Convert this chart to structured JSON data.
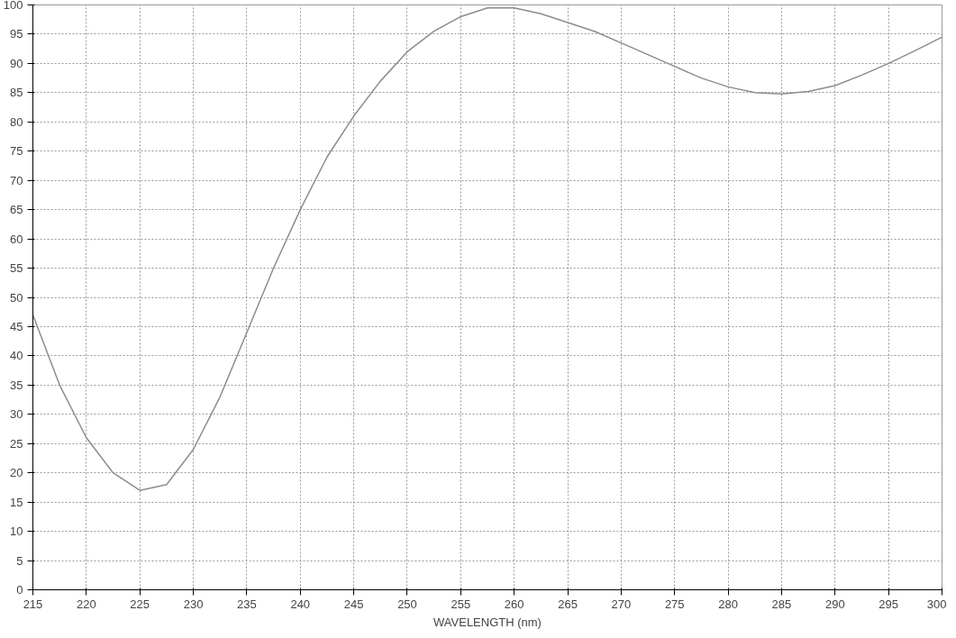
{
  "chart_data": {
    "type": "line",
    "xlabel": "WAVELENGTH (nm)",
    "x": [
      215,
      217.5,
      220,
      222.5,
      225,
      227.5,
      230,
      232.5,
      235,
      237.5,
      240,
      242.5,
      245,
      247.5,
      250,
      252.5,
      255,
      257.5,
      260,
      262.5,
      265,
      267.5,
      270,
      272.5,
      275,
      277.5,
      280,
      282.5,
      285,
      287.5,
      290,
      292.5,
      295,
      297.5,
      300
    ],
    "series": [
      {
        "color": "#8c8c8c",
        "values": [
          47,
          35,
          26,
          20,
          17,
          18,
          24,
          33,
          44,
          55,
          65,
          74,
          81,
          87,
          92,
          95.5,
          98,
          99.5,
          99.5,
          98.5,
          97,
          95.5,
          93.5,
          91.5,
          89.5,
          87.5,
          86,
          85,
          84.8,
          85.2,
          86.2,
          88,
          90,
          92.2,
          94.5
        ]
      }
    ],
    "xlim": [
      215,
      300
    ],
    "ylim": [
      0,
      100
    ],
    "xticks": [
      215,
      220,
      225,
      230,
      235,
      240,
      245,
      250,
      255,
      260,
      265,
      270,
      275,
      280,
      285,
      290,
      295,
      300
    ],
    "yticks": [
      0,
      5,
      10,
      15,
      20,
      25,
      30,
      35,
      40,
      45,
      50,
      55,
      60,
      65,
      70,
      75,
      80,
      85,
      90,
      95,
      100
    ],
    "grid": true,
    "line_style": "solid",
    "marker": "none"
  }
}
